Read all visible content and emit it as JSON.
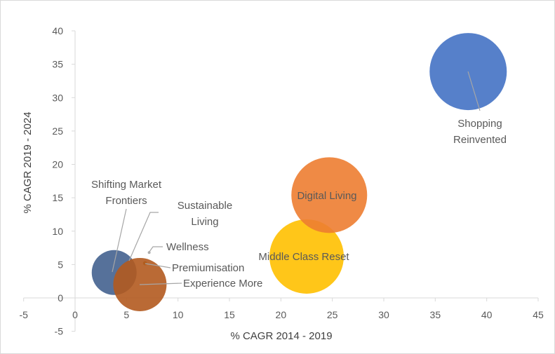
{
  "chart_data": {
    "type": "bubble",
    "xlabel": "% CAGR 2014 - 2019",
    "ylabel": "% CAGR 2019 - 2024",
    "xlim": [
      -5,
      45
    ],
    "ylim": [
      -5,
      40
    ],
    "x_ticks": [
      "-5",
      "0",
      "5",
      "10",
      "15",
      "20",
      "25",
      "30",
      "35",
      "40",
      "45"
    ],
    "y_ticks": [
      "-5",
      "0",
      "5",
      "10",
      "15",
      "20",
      "25",
      "30",
      "35",
      "40"
    ],
    "grid": false,
    "legend": "none",
    "bubbles": [
      {
        "label": "Shifting Market Frontiers",
        "label_lines": [
          "Shifting Market",
          "Frontiers"
        ],
        "x": 3.8,
        "y": 3.8,
        "r": 32,
        "color": "#44628f"
      },
      {
        "label": "Sustainable Living",
        "label_lines": [
          "Sustainable",
          "Living"
        ],
        "x": 5.5,
        "y": 5.5,
        "r": 0,
        "color": "#8f8f8f"
      },
      {
        "label": "Wellness",
        "label_lines": [
          "Wellness"
        ],
        "x": 7.2,
        "y": 6.8,
        "r": 2,
        "color": "#a5a5a5"
      },
      {
        "label": "Premiumisation",
        "label_lines": [
          "Premiumisation"
        ],
        "x": 6.8,
        "y": 5.2,
        "r": 3,
        "color": "#8b6a0a"
      },
      {
        "label": "Experience More",
        "label_lines": [
          "Experience More"
        ],
        "x": 6.3,
        "y": 2.0,
        "r": 38,
        "color": "#b35a1f"
      },
      {
        "label": "Middle Class Reset",
        "label_lines": [
          "Middle Class Reset"
        ],
        "x": 22.5,
        "y": 6.2,
        "r": 53,
        "color": "#ffc000"
      },
      {
        "label": "Digital Living",
        "label_lines": [
          "Digital Living"
        ],
        "x": 24.7,
        "y": 15.4,
        "r": 54,
        "color": "#ed7d31"
      },
      {
        "label": "Shopping Reinvented",
        "label_lines": [
          "Shopping",
          "Reinvented"
        ],
        "x": 38.2,
        "y": 33.9,
        "r": 55,
        "color": "#4472c4"
      }
    ]
  }
}
